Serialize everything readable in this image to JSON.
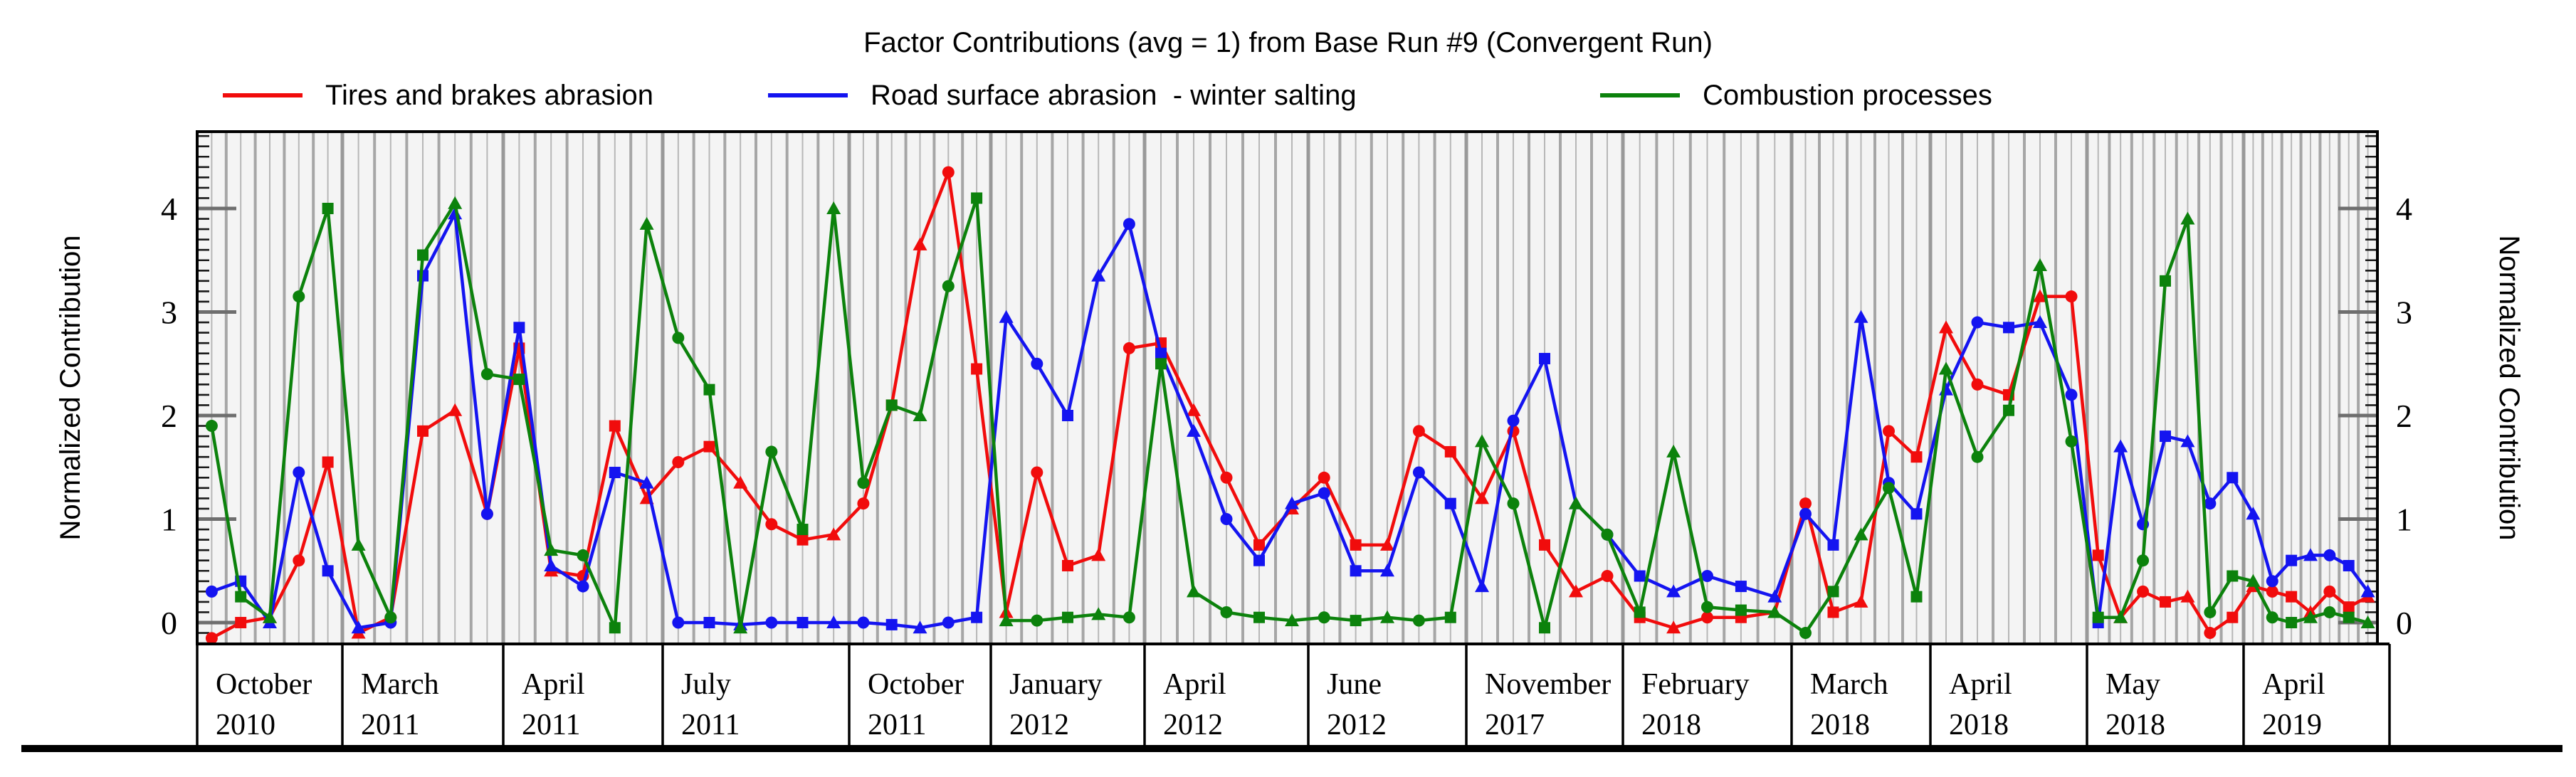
{
  "title": "Factor Contributions (avg = 1) from Base Run #9 (Convergent Run)",
  "y_axis": {
    "label_left": "Normalized Contribution",
    "label_right": "Normalized Contribution",
    "tick_labels": [
      "0",
      "1",
      "2",
      "3",
      "4"
    ],
    "minor_tick_step": 0.1,
    "min": -0.21,
    "max": 4.74
  },
  "legend": [
    {
      "label": "Tires and brakes abrasion",
      "color": "#f10c0c"
    },
    {
      "label": "Road surface abrasion  - winter salting",
      "color": "#1414f0"
    },
    {
      "label": "Combustion processes",
      "color": "#0c820c"
    }
  ],
  "chart_data": {
    "type": "line",
    "title": "Factor Contributions (avg = 1) from Base Run #9 (Convergent Run)",
    "xlabel": "",
    "ylabel": "Normalized Contribution",
    "ylim": [
      -0.21,
      4.74
    ],
    "grid": "vertical-stripes",
    "legend_position": "top",
    "x_groups": [
      {
        "month": "October",
        "year": "2010",
        "count": 5
      },
      {
        "month": "March",
        "year": "2011",
        "count": 5
      },
      {
        "month": "April",
        "year": "2011",
        "count": 5
      },
      {
        "month": "July",
        "year": "2011",
        "count": 6
      },
      {
        "month": "October",
        "year": "2011",
        "count": 5
      },
      {
        "month": "January",
        "year": "2012",
        "count": 5
      },
      {
        "month": "April",
        "year": "2012",
        "count": 5
      },
      {
        "month": "June",
        "year": "2012",
        "count": 5
      },
      {
        "month": "November",
        "year": "2017",
        "count": 5
      },
      {
        "month": "February",
        "year": "2018",
        "count": 5
      },
      {
        "month": "March",
        "year": "2018",
        "count": 5
      },
      {
        "month": "April",
        "year": "2018",
        "count": 5
      },
      {
        "month": "May",
        "year": "2018",
        "count": 7
      },
      {
        "month": "April",
        "year": "2019",
        "count": 7
      }
    ],
    "series": [
      {
        "name": "Tires and brakes abrasion",
        "color": "#f10c0c",
        "values": [
          -0.15,
          0.0,
          0.05,
          0.6,
          1.55,
          -0.1,
          0.05,
          1.85,
          2.05,
          1.05,
          2.65,
          0.5,
          0.45,
          1.9,
          1.2,
          1.55,
          1.7,
          1.35,
          0.95,
          0.8,
          0.85,
          1.15,
          2.1,
          3.65,
          4.35,
          2.45,
          0.1,
          1.45,
          0.55,
          0.65,
          2.65,
          2.7,
          2.05,
          1.4,
          0.75,
          1.1,
          1.4,
          0.75,
          0.75,
          1.85,
          1.65,
          1.2,
          1.85,
          0.75,
          0.3,
          0.45,
          0.05,
          -0.05,
          0.05,
          0.05,
          0.1,
          1.15,
          0.1,
          0.2,
          1.85,
          1.6,
          2.85,
          2.3,
          2.2,
          3.15,
          3.15,
          0.65,
          0.05,
          0.3,
          0.2,
          0.25,
          -0.1,
          0.05,
          0.35,
          0.3,
          0.25,
          0.1,
          0.3,
          0.15,
          0.25
        ]
      },
      {
        "name": "Road surface abrasion  - winter salting",
        "color": "#1414f0",
        "values": [
          0.3,
          0.4,
          0.0,
          1.45,
          0.5,
          -0.05,
          0.0,
          3.35,
          3.95,
          1.05,
          2.85,
          0.55,
          0.35,
          1.45,
          1.35,
          0.0,
          0.0,
          -0.02,
          0.0,
          0.0,
          0.0,
          0.0,
          -0.02,
          -0.05,
          0.0,
          0.05,
          2.95,
          2.5,
          2.0,
          3.35,
          3.85,
          2.6,
          1.85,
          1.0,
          0.6,
          1.15,
          1.25,
          0.5,
          0.5,
          1.45,
          1.15,
          0.35,
          1.95,
          2.55,
          1.15,
          0.85,
          0.45,
          0.3,
          0.45,
          0.35,
          0.25,
          1.05,
          0.75,
          2.95,
          1.35,
          1.05,
          2.25,
          2.9,
          2.85,
          2.9,
          2.2,
          0.0,
          1.7,
          0.95,
          1.8,
          1.75,
          1.15,
          1.4,
          1.05,
          0.4,
          0.6,
          0.65,
          0.65,
          0.55,
          0.3
        ]
      },
      {
        "name": "Combustion processes",
        "color": "#0c820c",
        "values": [
          1.9,
          0.25,
          0.05,
          3.15,
          4.0,
          0.75,
          0.05,
          3.55,
          4.05,
          2.4,
          2.35,
          0.7,
          0.65,
          -0.05,
          3.85,
          2.75,
          2.25,
          -0.05,
          1.65,
          0.9,
          4.0,
          1.35,
          2.1,
          2.0,
          3.25,
          4.1,
          0.02,
          0.02,
          0.05,
          0.08,
          0.05,
          2.5,
          0.3,
          0.1,
          0.05,
          0.02,
          0.05,
          0.02,
          0.05,
          0.02,
          0.05,
          1.75,
          1.15,
          -0.05,
          1.15,
          0.85,
          0.1,
          1.65,
          0.15,
          0.12,
          0.1,
          -0.1,
          0.3,
          0.85,
          1.3,
          0.25,
          2.45,
          1.6,
          2.05,
          3.45,
          1.75,
          0.05,
          0.05,
          0.6,
          3.3,
          3.9,
          0.1,
          0.45,
          0.4,
          0.05,
          0.0,
          0.05,
          0.1,
          0.05,
          0.0
        ]
      }
    ]
  }
}
